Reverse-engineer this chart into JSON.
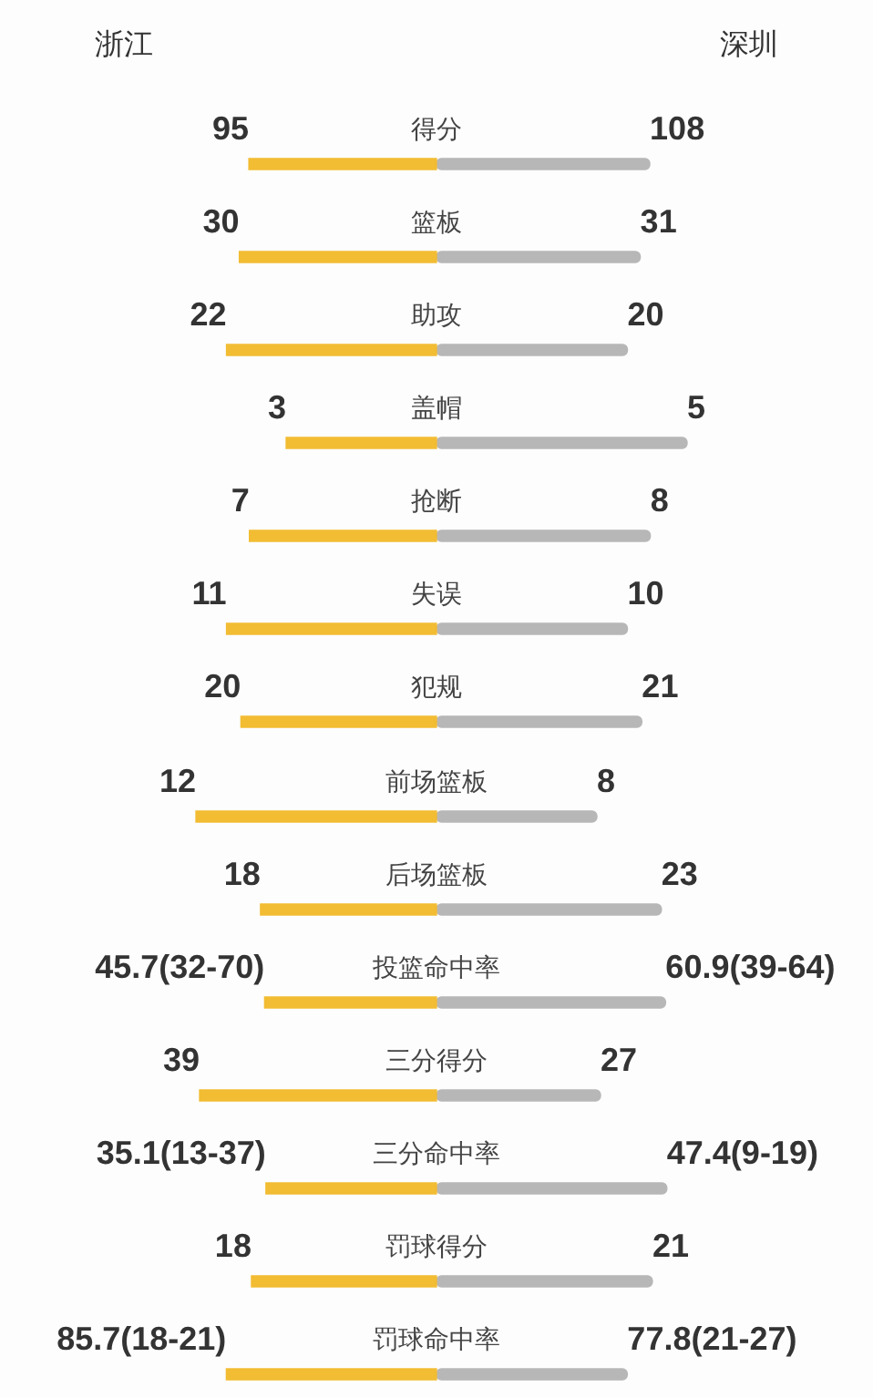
{
  "chart_data": [
    {
      "type": "bar",
      "orientation": "horizontal",
      "stacked": true,
      "annotations": [
        "浙江",
        "深圳"
      ],
      "categories": [
        "得分"
      ],
      "series": [
        {
          "color": "#f2bc33",
          "values": [
            95
          ],
          "value_labels": [
            "95"
          ]
        },
        {
          "color": "#b7b7b7",
          "values": [
            108
          ],
          "value_labels": [
            "108"
          ]
        }
      ]
    },
    {
      "type": "bar",
      "orientation": "horizontal",
      "stacked": true,
      "categories": [
        "篮板"
      ],
      "series": [
        {
          "color": "#f2bc33",
          "values": [
            30
          ],
          "value_labels": [
            "30"
          ]
        },
        {
          "color": "#b7b7b7",
          "values": [
            31
          ],
          "value_labels": [
            "31"
          ]
        }
      ]
    },
    {
      "type": "bar",
      "orientation": "horizontal",
      "stacked": true,
      "categories": [
        "助攻"
      ],
      "series": [
        {
          "color": "#f2bc33",
          "values": [
            22
          ],
          "value_labels": [
            "22"
          ]
        },
        {
          "color": "#b7b7b7",
          "values": [
            20
          ],
          "value_labels": [
            "20"
          ]
        }
      ]
    },
    {
      "type": "bar",
      "orientation": "horizontal",
      "stacked": true,
      "categories": [
        "盖帽"
      ],
      "series": [
        {
          "color": "#f2bc33",
          "values": [
            3
          ],
          "value_labels": [
            "3"
          ]
        },
        {
          "color": "#b7b7b7",
          "values": [
            5
          ],
          "value_labels": [
            "5"
          ]
        }
      ]
    },
    {
      "type": "bar",
      "orientation": "horizontal",
      "stacked": true,
      "categories": [
        "抢断"
      ],
      "series": [
        {
          "color": "#f2bc33",
          "values": [
            7
          ],
          "value_labels": [
            "7"
          ]
        },
        {
          "color": "#b7b7b7",
          "values": [
            8
          ],
          "value_labels": [
            "8"
          ]
        }
      ]
    },
    {
      "type": "bar",
      "orientation": "horizontal",
      "stacked": true,
      "categories": [
        "失误"
      ],
      "series": [
        {
          "color": "#f2bc33",
          "values": [
            11
          ],
          "value_labels": [
            "11"
          ]
        },
        {
          "color": "#b7b7b7",
          "values": [
            10
          ],
          "value_labels": [
            "10"
          ]
        }
      ]
    },
    {
      "type": "bar",
      "orientation": "horizontal",
      "stacked": true,
      "categories": [
        "犯规"
      ],
      "series": [
        {
          "color": "#f2bc33",
          "values": [
            20
          ],
          "value_labels": [
            "20"
          ]
        },
        {
          "color": "#b7b7b7",
          "values": [
            21
          ],
          "value_labels": [
            "21"
          ]
        }
      ]
    },
    {
      "type": "bar",
      "orientation": "horizontal",
      "stacked": true,
      "categories": [
        "前场篮板"
      ],
      "series": [
        {
          "color": "#f2bc33",
          "values": [
            12
          ],
          "value_labels": [
            "12"
          ]
        },
        {
          "color": "#b7b7b7",
          "values": [
            8
          ],
          "value_labels": [
            "8"
          ]
        }
      ]
    },
    {
      "type": "bar",
      "orientation": "horizontal",
      "stacked": true,
      "categories": [
        "后场篮板"
      ],
      "series": [
        {
          "color": "#f2bc33",
          "values": [
            18
          ],
          "value_labels": [
            "18"
          ]
        },
        {
          "color": "#b7b7b7",
          "values": [
            23
          ],
          "value_labels": [
            "23"
          ]
        }
      ]
    },
    {
      "type": "bar",
      "orientation": "horizontal",
      "stacked": true,
      "categories": [
        "投篮命中率"
      ],
      "series": [
        {
          "color": "#f2bc33",
          "values": [
            45.7
          ],
          "value_labels": [
            "45.7(32-70)"
          ]
        },
        {
          "color": "#b7b7b7",
          "values": [
            60.9
          ],
          "value_labels": [
            "60.9(39-64)"
          ]
        }
      ]
    },
    {
      "type": "bar",
      "orientation": "horizontal",
      "stacked": true,
      "categories": [
        "三分得分"
      ],
      "series": [
        {
          "color": "#f2bc33",
          "values": [
            39
          ],
          "value_labels": [
            "39"
          ]
        },
        {
          "color": "#b7b7b7",
          "values": [
            27
          ],
          "value_labels": [
            "27"
          ]
        }
      ]
    },
    {
      "type": "bar",
      "orientation": "horizontal",
      "stacked": true,
      "categories": [
        "三分命中率"
      ],
      "series": [
        {
          "color": "#f2bc33",
          "values": [
            35.1
          ],
          "value_labels": [
            "35.1(13-37)"
          ]
        },
        {
          "color": "#b7b7b7",
          "values": [
            47.4
          ],
          "value_labels": [
            "47.4(9-19)"
          ]
        }
      ]
    },
    {
      "type": "bar",
      "orientation": "horizontal",
      "stacked": true,
      "categories": [
        "罚球得分"
      ],
      "series": [
        {
          "color": "#f2bc33",
          "values": [
            18
          ],
          "value_labels": [
            "18"
          ]
        },
        {
          "color": "#b7b7b7",
          "values": [
            21
          ],
          "value_labels": [
            "21"
          ]
        }
      ]
    },
    {
      "type": "bar",
      "orientation": "horizontal",
      "stacked": true,
      "categories": [
        "罚球命中率"
      ],
      "series": [
        {
          "color": "#f2bc33",
          "values": [
            85.7
          ],
          "value_labels": [
            "85.7(18-21)"
          ]
        },
        {
          "color": "#b7b7b7",
          "values": [
            77.8
          ],
          "value_labels": [
            "77.8(21-27)"
          ]
        }
      ]
    }
  ]
}
